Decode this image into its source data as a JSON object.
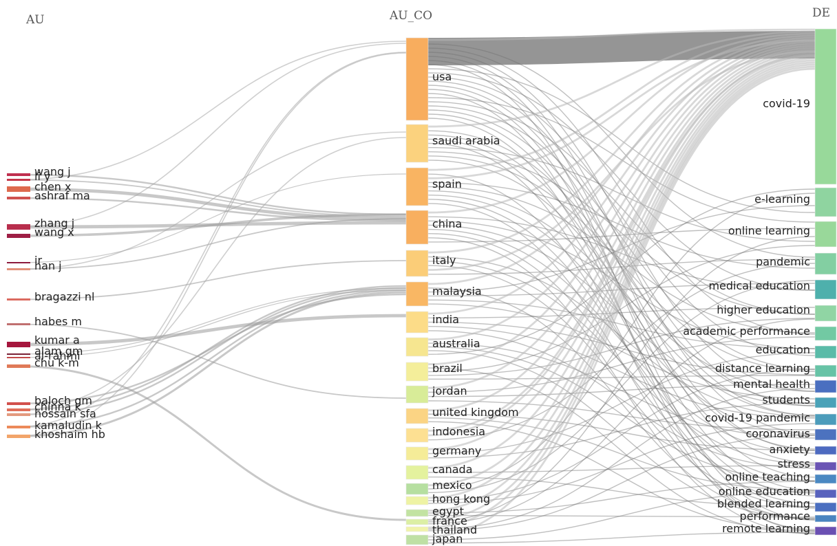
{
  "columns": {
    "left": "AU",
    "middle": "AU_CO",
    "right": "DE"
  },
  "authors": [
    {
      "name": "wang j",
      "color": "#c0304f"
    },
    {
      "name": "li y",
      "color": "#c4364a"
    },
    {
      "name": "chen x",
      "color": "#de6a4e"
    },
    {
      "name": "ashraf ma",
      "color": "#cf5250"
    },
    {
      "name": "zhang j",
      "color": "#b82e4d"
    },
    {
      "name": "wang x",
      "color": "#9e1f45"
    },
    {
      "name": "ir",
      "color": "#8c1a3c"
    },
    {
      "name": "han j",
      "color": "#e2907a"
    },
    {
      "name": "bragazzi nl",
      "color": "#db6a60"
    },
    {
      "name": "habes m",
      "color": "#c07070"
    },
    {
      "name": "kumar a",
      "color": "#a5163d"
    },
    {
      "name": "alam gm",
      "color": "#7a2035"
    },
    {
      "name": "al-rahmi",
      "color": "#c24a4a"
    },
    {
      "name": "chu k-m",
      "color": "#e07a58"
    },
    {
      "name": "baloch gm",
      "color": "#d2504c"
    },
    {
      "name": "chinna k",
      "color": "#e06e5a"
    },
    {
      "name": "hossain sfa",
      "color": "#e39a7e"
    },
    {
      "name": "kamaludin k",
      "color": "#ec8a5a"
    },
    {
      "name": "khoshaim hb",
      "color": "#f2a46a"
    }
  ],
  "countries": [
    {
      "name": "usa",
      "color": "#f8ad5e"
    },
    {
      "name": "saudi arabia",
      "color": "#fbd27e"
    },
    {
      "name": "spain",
      "color": "#f9b462"
    },
    {
      "name": "china",
      "color": "#f8af5f"
    },
    {
      "name": "italy",
      "color": "#fbcd78"
    },
    {
      "name": "malaysia",
      "color": "#f9b764"
    },
    {
      "name": "india",
      "color": "#fcdc88"
    },
    {
      "name": "australia",
      "color": "#f6e690"
    },
    {
      "name": "brazil",
      "color": "#f4ee9a"
    },
    {
      "name": "jordan",
      "color": "#d8ec98"
    },
    {
      "name": "united kingdom",
      "color": "#fbd484"
    },
    {
      "name": "indonesia",
      "color": "#fde092"
    },
    {
      "name": "germany",
      "color": "#f5ec98"
    },
    {
      "name": "canada",
      "color": "#e4f29e"
    },
    {
      "name": "mexico",
      "color": "#b6dfa0"
    },
    {
      "name": "hong kong",
      "color": "#eef3a4"
    },
    {
      "name": "egypt",
      "color": "#c2e3a2"
    },
    {
      "name": "france",
      "color": "#dcefa4"
    },
    {
      "name": "thailand",
      "color": "#f1f3aa"
    },
    {
      "name": "japan",
      "color": "#bfe0a4"
    }
  ],
  "keywords": [
    {
      "name": "covid-19",
      "color": "#98d99a"
    },
    {
      "name": "e-learning",
      "color": "#8fd4a0"
    },
    {
      "name": "online learning",
      "color": "#99d89a"
    },
    {
      "name": "pandemic",
      "color": "#83cfa2"
    },
    {
      "name": "medical education",
      "color": "#4eb0ac"
    },
    {
      "name": "higher education",
      "color": "#90d5a4"
    },
    {
      "name": "academic performance",
      "color": "#72c9a3"
    },
    {
      "name": "education",
      "color": "#5abba8"
    },
    {
      "name": "distance learning",
      "color": "#67c3a6"
    },
    {
      "name": "mental health",
      "color": "#4a6fc0"
    },
    {
      "name": "students",
      "color": "#4aa2b8"
    },
    {
      "name": "covid-19 pandemic",
      "color": "#4c9cbb"
    },
    {
      "name": "coronavirus",
      "color": "#4c72bf"
    },
    {
      "name": "anxiety",
      "color": "#4d6ac0"
    },
    {
      "name": "stress",
      "color": "#6a54b4"
    },
    {
      "name": "online teaching",
      "color": "#4a88c2"
    },
    {
      "name": "online education",
      "color": "#5862bd"
    },
    {
      "name": "blended learning",
      "color": "#4b6fc0"
    },
    {
      "name": "performance",
      "color": "#4a84c0"
    },
    {
      "name": "remote learning",
      "color": "#6a4fb2"
    }
  ]
}
